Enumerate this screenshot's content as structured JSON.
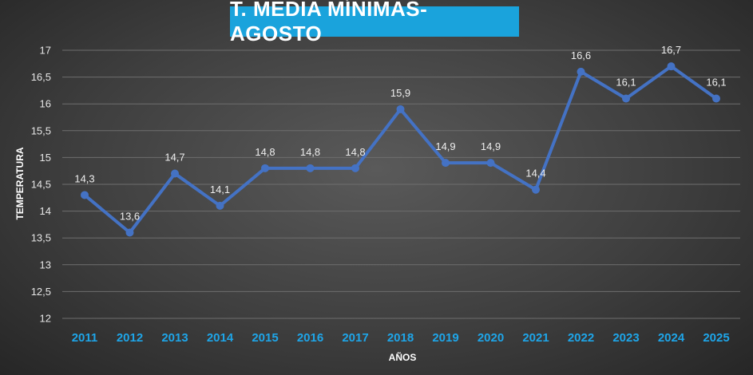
{
  "chart_data": {
    "type": "line",
    "title": "T. MEDIA MÍNIMAS-AGOSTO",
    "xlabel": "AÑOS",
    "ylabel": "TEMPERATURA",
    "categories": [
      "2011",
      "2012",
      "2013",
      "2014",
      "2015",
      "2016",
      "2017",
      "2018",
      "2019",
      "2020",
      "2021",
      "2022",
      "2023",
      "2024",
      "2025"
    ],
    "values": [
      14.3,
      13.6,
      14.7,
      14.1,
      14.8,
      14.8,
      14.8,
      15.9,
      14.9,
      14.9,
      14.4,
      16.6,
      16.1,
      16.7,
      16.1
    ],
    "data_labels": [
      "14,3",
      "13,6",
      "14,7",
      "14,1",
      "14,8",
      "14,8",
      "14,8",
      "15,9",
      "14,9",
      "14,9",
      "14,4",
      "16,6",
      "16,1",
      "16,7",
      "16,1"
    ],
    "yticks": [
      "12",
      "12,5",
      "13",
      "13,5",
      "14",
      "14,5",
      "15",
      "15,5",
      "16",
      "16,5",
      "17"
    ],
    "ylim": [
      12,
      17
    ],
    "grid": true,
    "legend": "none",
    "colors": {
      "line": "#4472c4",
      "title_bg": "#1aa3dc",
      "xtick": "#1ea5e8"
    }
  }
}
